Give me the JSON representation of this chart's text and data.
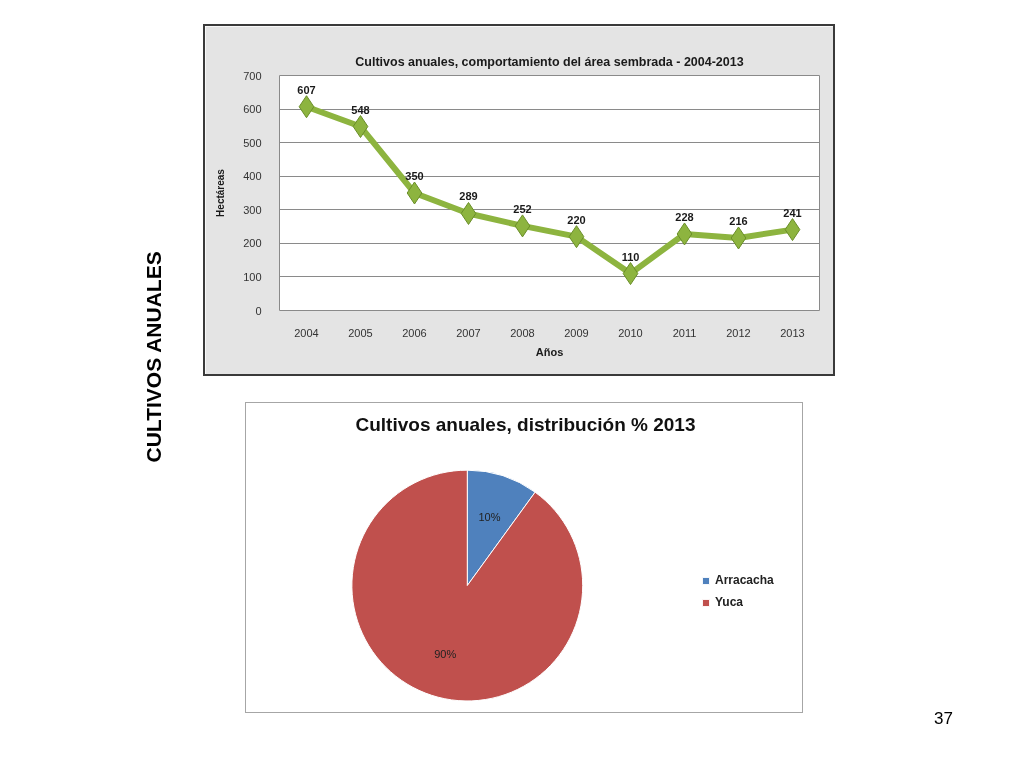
{
  "chart_data": [
    {
      "type": "line",
      "title": "Cultivos anuales, comportamiento del área sembrada - 2004-2013",
      "xlabel": "Años",
      "ylabel": "Hectáreas",
      "categories": [
        "2004",
        "2005",
        "2006",
        "2007",
        "2008",
        "2009",
        "2010",
        "2011",
        "2012",
        "2013"
      ],
      "series": [
        {
          "color": "#8db43f",
          "values": [
            607,
            548,
            350,
            289,
            252,
            220,
            110,
            228,
            216,
            241
          ]
        }
      ],
      "ylim": [
        0,
        700
      ],
      "yticks": [
        0,
        100,
        200,
        300,
        400,
        500,
        600,
        700
      ],
      "grid": "y",
      "marker": "diamond",
      "line_style": "solid",
      "data_labels": true,
      "annotations": [
        "CULTIVOS ANUALES"
      ]
    },
    {
      "type": "pie",
      "title": "Cultivos anuales, distribución % 2013",
      "categories": [
        "Arracacha",
        "Yuca"
      ],
      "values": [
        10,
        90
      ],
      "colors": [
        "#4f81bd",
        "#c0504d"
      ],
      "value_labels": [
        "10%",
        "90%"
      ],
      "legend": "right",
      "annotations": [
        "37"
      ]
    }
  ]
}
